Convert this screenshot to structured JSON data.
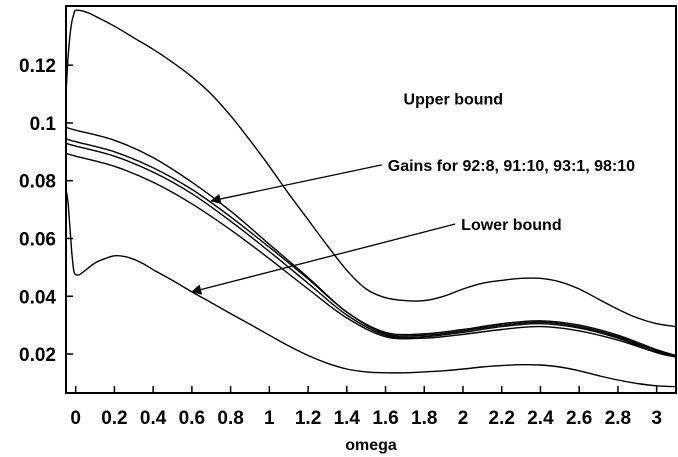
{
  "chart_data": {
    "type": "line",
    "title": "",
    "xlabel": "omega",
    "ylabel": "",
    "xlim": [
      -0.05,
      3.1
    ],
    "ylim": [
      0.0065,
      0.1405
    ],
    "grid": false,
    "x_ticks": [
      0,
      0.2,
      0.4,
      0.6,
      0.8,
      1,
      1.2,
      1.4,
      1.6,
      1.8,
      2,
      2.2,
      2.4,
      2.6,
      2.8,
      3
    ],
    "x_tick_labels": [
      "0",
      "0.2",
      "0.4",
      "0.6",
      "0.8",
      "1",
      "1.2",
      "1.4",
      "1.6",
      "1.8",
      "2",
      "2.2",
      "2.4",
      "2.6",
      "2.8",
      "3"
    ],
    "y_ticks": [
      0.02,
      0.04,
      0.06,
      0.08,
      0.1,
      0.12
    ],
    "y_tick_labels": [
      "0.02",
      "0.04",
      "0.06",
      "0.08",
      "0.1",
      "0.12"
    ],
    "series": [
      {
        "x": [
          -0.05,
          -0.04,
          -0.03,
          -0.02,
          -0.01,
          0,
          0.05,
          0.1,
          0.2,
          0.3,
          0.4,
          0.5,
          0.6,
          0.7,
          0.8,
          0.9,
          1.0,
          1.1,
          1.2,
          1.3,
          1.4,
          1.5,
          1.6,
          1.7,
          1.8,
          1.9,
          2.0,
          2.1,
          2.2,
          2.3,
          2.4,
          2.5,
          2.6,
          2.7,
          2.8,
          2.9,
          3.0,
          3.1
        ],
        "y": [
          0.11,
          0.122,
          0.13,
          0.135,
          0.1375,
          0.139,
          0.1385,
          0.137,
          0.1335,
          0.1295,
          0.1255,
          0.121,
          0.116,
          0.11,
          0.1025,
          0.094,
          0.085,
          0.0755,
          0.0665,
          0.0575,
          0.049,
          0.0425,
          0.0395,
          0.0385,
          0.0385,
          0.04,
          0.0425,
          0.0445,
          0.0455,
          0.0462,
          0.0462,
          0.045,
          0.0425,
          0.039,
          0.0355,
          0.0325,
          0.0305,
          0.0295
        ]
      },
      {
        "x": [
          -0.05,
          0,
          0.2,
          0.4,
          0.6,
          0.8,
          1.0,
          1.2,
          1.4,
          1.6,
          1.8,
          2.0,
          2.2,
          2.4,
          2.6,
          2.8,
          3.0,
          3.1
        ],
        "y": [
          0.0985,
          0.0975,
          0.094,
          0.088,
          0.0795,
          0.0695,
          0.058,
          0.0465,
          0.0345,
          0.0275,
          0.027,
          0.0285,
          0.0305,
          0.0315,
          0.03,
          0.0265,
          0.0215,
          0.0195
        ]
      },
      {
        "x": [
          -0.05,
          0,
          0.2,
          0.4,
          0.6,
          0.8,
          1.0,
          1.2,
          1.4,
          1.6,
          1.8,
          2.0,
          2.2,
          2.4,
          2.6,
          2.8,
          3.0,
          3.1
        ],
        "y": [
          0.0945,
          0.0935,
          0.09,
          0.0845,
          0.077,
          0.0675,
          0.057,
          0.046,
          0.0345,
          0.027,
          0.0265,
          0.028,
          0.03,
          0.031,
          0.0295,
          0.026,
          0.021,
          0.0195
        ]
      },
      {
        "x": [
          -0.05,
          0,
          0.2,
          0.4,
          0.6,
          0.8,
          1.0,
          1.2,
          1.4,
          1.6,
          1.8,
          2.0,
          2.2,
          2.4,
          2.6,
          2.8,
          3.0,
          3.1
        ],
        "y": [
          0.093,
          0.092,
          0.0885,
          0.083,
          0.0755,
          0.066,
          0.0555,
          0.0445,
          0.0335,
          0.0265,
          0.026,
          0.0275,
          0.0295,
          0.0305,
          0.029,
          0.0255,
          0.0205,
          0.019
        ]
      },
      {
        "x": [
          -0.05,
          0,
          0.2,
          0.4,
          0.6,
          0.8,
          1.0,
          1.2,
          1.4,
          1.6,
          1.8,
          2.0,
          2.2,
          2.4,
          2.6,
          2.8,
          3.0,
          3.1
        ],
        "y": [
          0.0895,
          0.0885,
          0.085,
          0.0795,
          0.072,
          0.063,
          0.053,
          0.0425,
          0.0325,
          0.026,
          0.0255,
          0.0268,
          0.0285,
          0.0295,
          0.028,
          0.0248,
          0.0205,
          0.019
        ]
      },
      {
        "x": [
          -0.05,
          -0.04,
          -0.03,
          -0.02,
          -0.01,
          0,
          0.02,
          0.05,
          0.1,
          0.15,
          0.2,
          0.25,
          0.3,
          0.35,
          0.4,
          0.5,
          0.6,
          0.7,
          0.8,
          0.9,
          1.0,
          1.1,
          1.2,
          1.3,
          1.4,
          1.5,
          1.6,
          1.7,
          1.8,
          1.9,
          2.0,
          2.1,
          2.2,
          2.3,
          2.4,
          2.5,
          2.6,
          2.7,
          2.8,
          2.9,
          3.0,
          3.1
        ],
        "y": [
          0.077,
          0.073,
          0.064,
          0.055,
          0.049,
          0.0475,
          0.0475,
          0.049,
          0.0515,
          0.053,
          0.054,
          0.0538,
          0.0528,
          0.0512,
          0.0492,
          0.0455,
          0.0415,
          0.0378,
          0.034,
          0.0303,
          0.0265,
          0.0228,
          0.0195,
          0.0168,
          0.0148,
          0.0138,
          0.0135,
          0.0135,
          0.0138,
          0.0142,
          0.0148,
          0.0155,
          0.016,
          0.0163,
          0.0162,
          0.0155,
          0.0142,
          0.0125,
          0.011,
          0.0098,
          0.009,
          0.0087
        ]
      }
    ],
    "annotations": [
      {
        "text": "Upper bound",
        "x": 1.95,
        "y": 0.1085
      },
      {
        "text": "Gains for 92:8, 91:10, 93:1, 98:10",
        "x": 2.25,
        "y": 0.0855,
        "arrow_to": [
          0.7,
          0.073
        ]
      },
      {
        "text": "Lower bound",
        "x": 2.25,
        "y": 0.065,
        "arrow_to": [
          0.6,
          0.0415
        ]
      }
    ]
  }
}
